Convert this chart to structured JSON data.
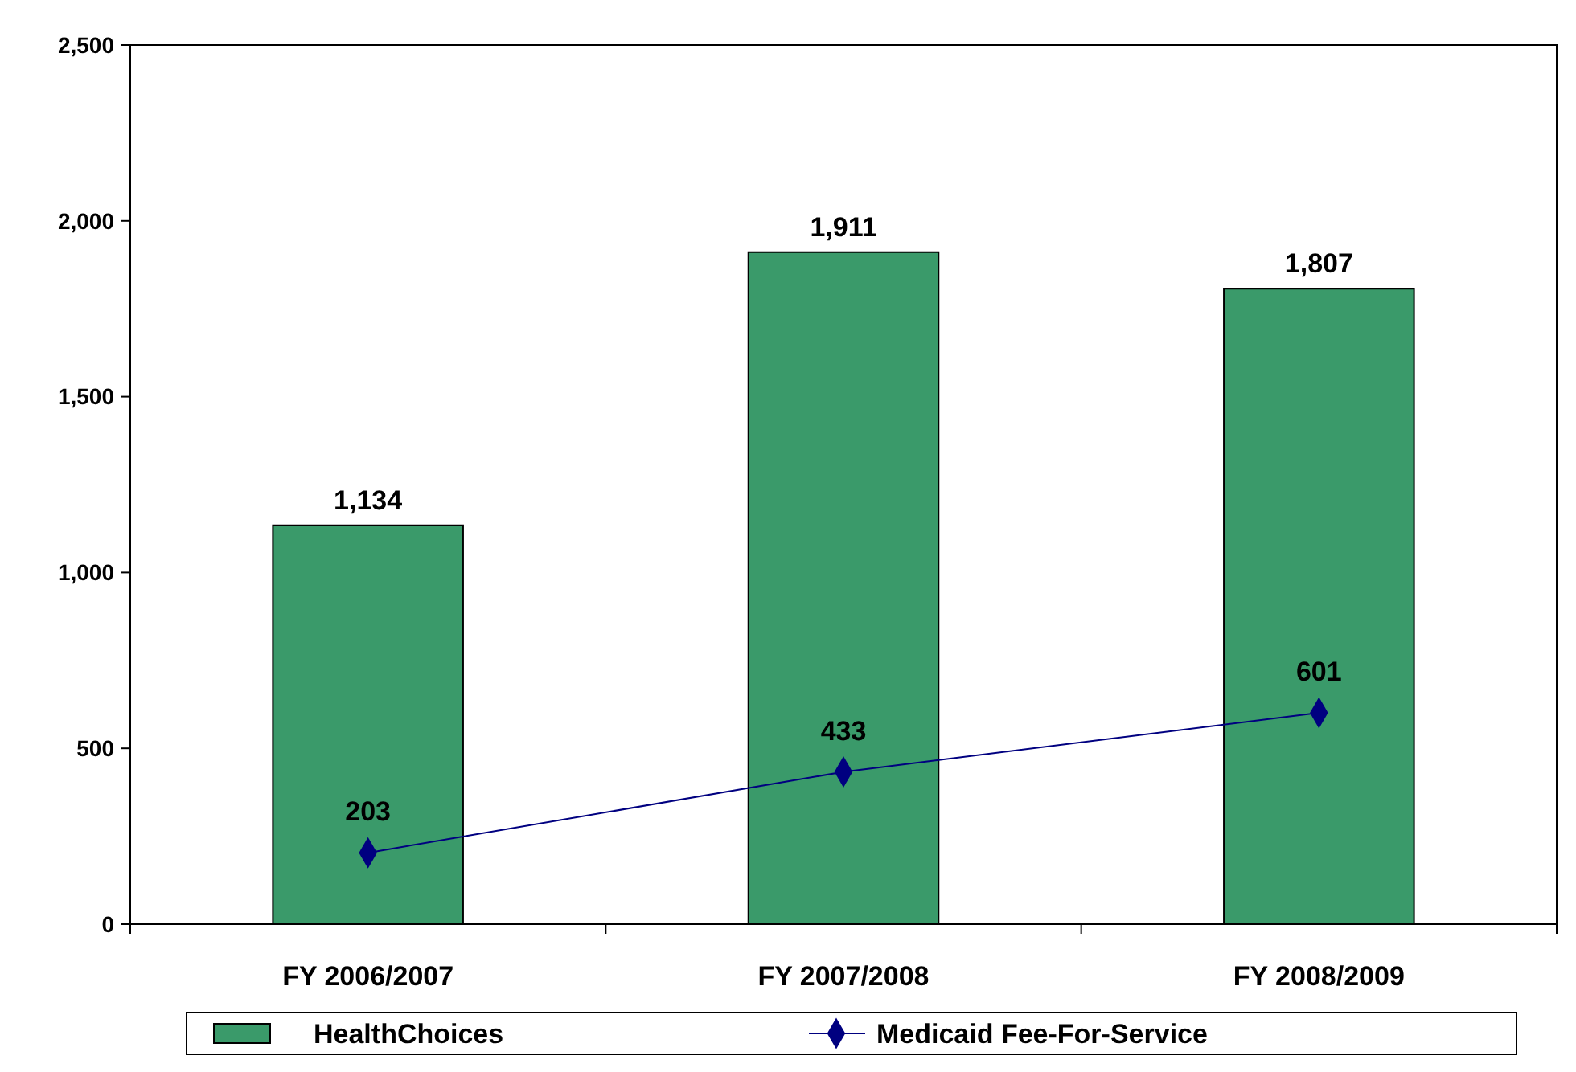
{
  "chart_data": {
    "type": "bar",
    "categories": [
      "FY 2006/2007",
      "FY 2007/2008",
      "FY 2008/2009"
    ],
    "series": [
      {
        "name": "HealthChoices",
        "color": "#3a9a6a",
        "values": [
          1134,
          1911,
          1807
        ],
        "value_labels": [
          "1,134",
          "1,911",
          "1,807"
        ]
      },
      {
        "name": "Medicaid Fee-For-Service",
        "type": "line",
        "color": "#000080",
        "marker": "diamond",
        "values": [
          203,
          433,
          601
        ]
      }
    ],
    "ylim": [
      0,
      2500
    ],
    "yticks": [
      {
        "value": 0,
        "label": "0"
      },
      {
        "value": 500,
        "label": "500"
      },
      {
        "value": 1000,
        "label": "1,000"
      },
      {
        "value": 1500,
        "label": "1,500"
      },
      {
        "value": 2000,
        "label": "2,000"
      },
      {
        "value": 2500,
        "label": "2,500"
      }
    ],
    "data_labels": true,
    "legend": "bottom",
    "grid": false
  }
}
